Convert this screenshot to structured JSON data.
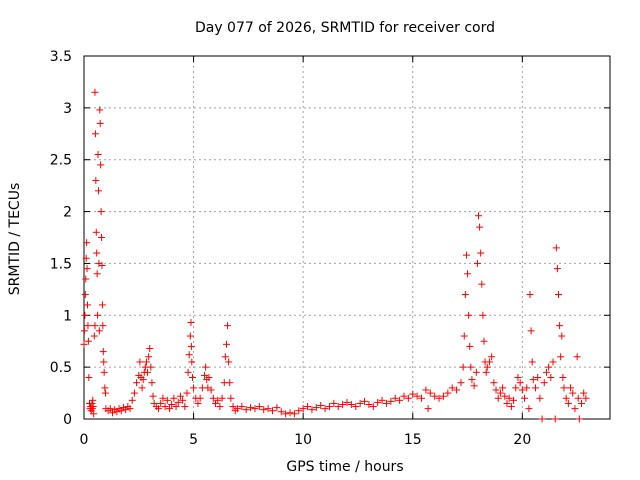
{
  "chart_data": {
    "type": "scatter",
    "title": "Day 077 of 2026, SRMTID for receiver cord",
    "xlabel": "GPS time / hours",
    "ylabel": "SRMTID / TECUs",
    "xlim": [
      0,
      24
    ],
    "ylim": [
      0,
      3.5
    ],
    "x_ticks": [
      0,
      5,
      10,
      15,
      20
    ],
    "x_tick_labels": [
      "0",
      "5",
      "10",
      "15",
      "20"
    ],
    "y_ticks": [
      0,
      0.5,
      1,
      1.5,
      2,
      2.5,
      3,
      3.5
    ],
    "y_tick_labels": [
      "0",
      "0.5",
      "1",
      "1.5",
      "2",
      "2.5",
      "3",
      "3.5"
    ],
    "grid": true,
    "marker": "+",
    "series_color": "#ff0000",
    "series": [
      {
        "name": "cord",
        "points": [
          [
            0.0,
            0.72
          ],
          [
            0.02,
            0.85
          ],
          [
            0.04,
            1.0
          ],
          [
            0.06,
            1.2
          ],
          [
            0.08,
            1.35
          ],
          [
            0.1,
            1.55
          ],
          [
            0.12,
            1.7
          ],
          [
            0.14,
            1.45
          ],
          [
            0.16,
            1.1
          ],
          [
            0.18,
            0.9
          ],
          [
            0.2,
            0.75
          ],
          [
            0.22,
            0.4
          ],
          [
            0.25,
            0.15
          ],
          [
            0.28,
            0.1
          ],
          [
            0.3,
            0.12
          ],
          [
            0.33,
            0.08
          ],
          [
            0.36,
            0.15
          ],
          [
            0.38,
            0.1
          ],
          [
            0.4,
            0.18
          ],
          [
            0.42,
            0.12
          ],
          [
            0.44,
            0.05
          ],
          [
            0.47,
            0.8
          ],
          [
            0.5,
            0.9
          ],
          [
            0.5,
            3.15
          ],
          [
            0.52,
            2.75
          ],
          [
            0.54,
            2.3
          ],
          [
            0.56,
            1.8
          ],
          [
            0.58,
            1.6
          ],
          [
            0.6,
            1.4
          ],
          [
            0.62,
            1.0
          ],
          [
            0.64,
            2.55
          ],
          [
            0.66,
            2.2
          ],
          [
            0.68,
            1.5
          ],
          [
            0.7,
            0.85
          ],
          [
            0.72,
            2.98
          ],
          [
            0.74,
            2.85
          ],
          [
            0.76,
            2.45
          ],
          [
            0.78,
            2.0
          ],
          [
            0.8,
            1.75
          ],
          [
            0.82,
            1.48
          ],
          [
            0.84,
            1.1
          ],
          [
            0.86,
            0.9
          ],
          [
            0.88,
            0.65
          ],
          [
            0.9,
            0.55
          ],
          [
            0.92,
            0.45
          ],
          [
            0.95,
            0.3
          ],
          [
            0.98,
            0.25
          ],
          [
            1.0,
            0.1
          ],
          [
            1.1,
            0.08
          ],
          [
            1.2,
            0.1
          ],
          [
            1.3,
            0.06
          ],
          [
            1.4,
            0.09
          ],
          [
            1.5,
            0.07
          ],
          [
            1.6,
            0.1
          ],
          [
            1.7,
            0.08
          ],
          [
            1.8,
            0.11
          ],
          [
            1.9,
            0.09
          ],
          [
            2.0,
            0.12
          ],
          [
            2.1,
            0.1
          ],
          [
            2.2,
            0.18
          ],
          [
            2.3,
            0.25
          ],
          [
            2.4,
            0.35
          ],
          [
            2.5,
            0.42
          ],
          [
            2.55,
            0.55
          ],
          [
            2.6,
            0.4
          ],
          [
            2.65,
            0.3
          ],
          [
            2.7,
            0.38
          ],
          [
            2.75,
            0.45
          ],
          [
            2.8,
            0.5
          ],
          [
            2.85,
            0.55
          ],
          [
            2.9,
            0.45
          ],
          [
            2.95,
            0.6
          ],
          [
            3.0,
            0.68
          ],
          [
            3.05,
            0.5
          ],
          [
            3.1,
            0.35
          ],
          [
            3.15,
            0.22
          ],
          [
            3.2,
            0.15
          ],
          [
            3.3,
            0.12
          ],
          [
            3.4,
            0.1
          ],
          [
            3.5,
            0.15
          ],
          [
            3.6,
            0.2
          ],
          [
            3.7,
            0.12
          ],
          [
            3.8,
            0.18
          ],
          [
            3.9,
            0.1
          ],
          [
            4.0,
            0.14
          ],
          [
            4.1,
            0.2
          ],
          [
            4.2,
            0.12
          ],
          [
            4.3,
            0.16
          ],
          [
            4.4,
            0.22
          ],
          [
            4.5,
            0.18
          ],
          [
            4.6,
            0.12
          ],
          [
            4.7,
            0.25
          ],
          [
            4.75,
            0.45
          ],
          [
            4.8,
            0.62
          ],
          [
            4.85,
            0.8
          ],
          [
            4.88,
            0.93
          ],
          [
            4.9,
            0.7
          ],
          [
            4.92,
            0.55
          ],
          [
            4.95,
            0.4
          ],
          [
            5.0,
            0.3
          ],
          [
            5.1,
            0.2
          ],
          [
            5.2,
            0.15
          ],
          [
            5.3,
            0.2
          ],
          [
            5.4,
            0.3
          ],
          [
            5.5,
            0.42
          ],
          [
            5.55,
            0.5
          ],
          [
            5.6,
            0.38
          ],
          [
            5.65,
            0.3
          ],
          [
            5.7,
            0.4
          ],
          [
            5.8,
            0.28
          ],
          [
            5.9,
            0.2
          ],
          [
            6.0,
            0.15
          ],
          [
            6.1,
            0.18
          ],
          [
            6.2,
            0.12
          ],
          [
            6.3,
            0.2
          ],
          [
            6.4,
            0.35
          ],
          [
            6.45,
            0.6
          ],
          [
            6.5,
            0.72
          ],
          [
            6.55,
            0.9
          ],
          [
            6.6,
            0.55
          ],
          [
            6.65,
            0.35
          ],
          [
            6.7,
            0.2
          ],
          [
            6.8,
            0.12
          ],
          [
            6.9,
            0.08
          ],
          [
            7.0,
            0.1
          ],
          [
            7.2,
            0.12
          ],
          [
            7.4,
            0.09
          ],
          [
            7.6,
            0.11
          ],
          [
            7.8,
            0.1
          ],
          [
            8.0,
            0.12
          ],
          [
            8.2,
            0.09
          ],
          [
            8.4,
            0.1
          ],
          [
            8.6,
            0.08
          ],
          [
            8.8,
            0.11
          ],
          [
            9.0,
            0.07
          ],
          [
            9.2,
            0.05
          ],
          [
            9.4,
            0.06
          ],
          [
            9.6,
            0.05
          ],
          [
            9.8,
            0.08
          ],
          [
            10.0,
            0.1
          ],
          [
            10.2,
            0.12
          ],
          [
            10.4,
            0.09
          ],
          [
            10.6,
            0.11
          ],
          [
            10.8,
            0.13
          ],
          [
            11.0,
            0.1
          ],
          [
            11.2,
            0.12
          ],
          [
            11.4,
            0.15
          ],
          [
            11.6,
            0.12
          ],
          [
            11.8,
            0.14
          ],
          [
            12.0,
            0.16
          ],
          [
            12.2,
            0.14
          ],
          [
            12.4,
            0.12
          ],
          [
            12.6,
            0.15
          ],
          [
            12.8,
            0.17
          ],
          [
            13.0,
            0.14
          ],
          [
            13.2,
            0.12
          ],
          [
            13.4,
            0.16
          ],
          [
            13.6,
            0.18
          ],
          [
            13.8,
            0.15
          ],
          [
            14.0,
            0.17
          ],
          [
            14.2,
            0.2
          ],
          [
            14.4,
            0.18
          ],
          [
            14.6,
            0.22
          ],
          [
            14.8,
            0.2
          ],
          [
            15.0,
            0.24
          ],
          [
            15.2,
            0.22
          ],
          [
            15.4,
            0.2
          ],
          [
            15.6,
            0.28
          ],
          [
            15.7,
            0.1
          ],
          [
            15.8,
            0.25
          ],
          [
            16.0,
            0.22
          ],
          [
            16.2,
            0.2
          ],
          [
            16.4,
            0.22
          ],
          [
            16.6,
            0.25
          ],
          [
            16.8,
            0.3
          ],
          [
            17.0,
            0.28
          ],
          [
            17.2,
            0.35
          ],
          [
            17.3,
            0.5
          ],
          [
            17.35,
            0.8
          ],
          [
            17.4,
            1.2
          ],
          [
            17.45,
            1.58
          ],
          [
            17.5,
            1.4
          ],
          [
            17.55,
            1.0
          ],
          [
            17.6,
            0.7
          ],
          [
            17.65,
            0.5
          ],
          [
            17.7,
            0.38
          ],
          [
            17.8,
            0.32
          ],
          [
            17.9,
            0.45
          ],
          [
            17.95,
            1.5
          ],
          [
            18.0,
            1.96
          ],
          [
            18.05,
            1.85
          ],
          [
            18.1,
            1.6
          ],
          [
            18.15,
            1.3
          ],
          [
            18.2,
            1.0
          ],
          [
            18.25,
            0.75
          ],
          [
            18.3,
            0.55
          ],
          [
            18.35,
            0.45
          ],
          [
            18.4,
            0.5
          ],
          [
            18.5,
            0.55
          ],
          [
            18.6,
            0.6
          ],
          [
            18.7,
            0.35
          ],
          [
            18.8,
            0.28
          ],
          [
            18.9,
            0.2
          ],
          [
            19.0,
            0.25
          ],
          [
            19.1,
            0.3
          ],
          [
            19.2,
            0.22
          ],
          [
            19.3,
            0.15
          ],
          [
            19.4,
            0.2
          ],
          [
            19.5,
            0.12
          ],
          [
            19.6,
            0.18
          ],
          [
            19.7,
            0.3
          ],
          [
            19.8,
            0.4
          ],
          [
            19.9,
            0.35
          ],
          [
            20.0,
            0.28
          ],
          [
            20.1,
            0.2
          ],
          [
            20.2,
            0.3
          ],
          [
            20.3,
            0.1
          ],
          [
            20.35,
            1.2
          ],
          [
            20.4,
            0.85
          ],
          [
            20.45,
            0.55
          ],
          [
            20.5,
            0.38
          ],
          [
            20.6,
            0.3
          ],
          [
            20.7,
            0.4
          ],
          [
            20.8,
            0.2
          ],
          [
            20.9,
            0.0
          ],
          [
            21.0,
            0.35
          ],
          [
            21.1,
            0.45
          ],
          [
            21.2,
            0.5
          ],
          [
            21.3,
            0.4
          ],
          [
            21.4,
            0.55
          ],
          [
            21.5,
            0.0
          ],
          [
            21.55,
            1.65
          ],
          [
            21.6,
            1.45
          ],
          [
            21.65,
            1.2
          ],
          [
            21.7,
            0.9
          ],
          [
            21.75,
            0.6
          ],
          [
            21.8,
            0.8
          ],
          [
            21.85,
            0.4
          ],
          [
            21.9,
            0.3
          ],
          [
            22.0,
            0.2
          ],
          [
            22.1,
            0.15
          ],
          [
            22.2,
            0.3
          ],
          [
            22.3,
            0.25
          ],
          [
            22.4,
            0.1
          ],
          [
            22.5,
            0.6
          ],
          [
            22.55,
            0.2
          ],
          [
            22.6,
            0.0
          ],
          [
            22.7,
            0.15
          ],
          [
            22.8,
            0.25
          ],
          [
            22.9,
            0.2
          ]
        ]
      }
    ]
  }
}
